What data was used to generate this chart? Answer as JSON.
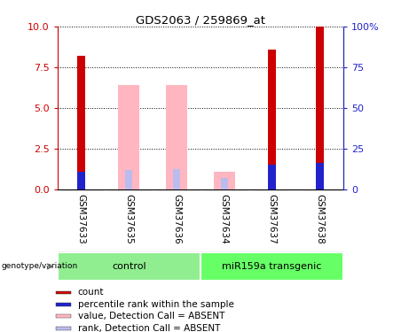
{
  "title": "GDS2063 / 259869_at",
  "samples": [
    "GSM37633",
    "GSM37635",
    "GSM37636",
    "GSM37634",
    "GSM37637",
    "GSM37638"
  ],
  "groups": [
    {
      "name": "control",
      "count": 3,
      "color": "#90EE90"
    },
    {
      "name": "miR159a transgenic",
      "count": 3,
      "color": "#66FF66"
    }
  ],
  "bar_data": [
    {
      "sample": "GSM37633",
      "count": 8.2,
      "rank": 1.1,
      "absent_value": null,
      "absent_rank": null,
      "is_absent": false
    },
    {
      "sample": "GSM37635",
      "count": null,
      "rank": null,
      "absent_value": 6.4,
      "absent_rank": 1.2,
      "is_absent": true
    },
    {
      "sample": "GSM37636",
      "count": null,
      "rank": null,
      "absent_value": 6.4,
      "absent_rank": 1.25,
      "is_absent": true
    },
    {
      "sample": "GSM37634",
      "count": null,
      "rank": null,
      "absent_value": 1.1,
      "absent_rank": 0.7,
      "is_absent": true
    },
    {
      "sample": "GSM37637",
      "count": 8.6,
      "rank": 1.5,
      "absent_value": null,
      "absent_rank": null,
      "is_absent": false
    },
    {
      "sample": "GSM37638",
      "count": 10.0,
      "rank": 1.6,
      "absent_value": null,
      "absent_rank": null,
      "is_absent": false
    }
  ],
  "ylim_left": [
    0,
    10
  ],
  "ylim_right": [
    0,
    100
  ],
  "yticks_left": [
    0,
    2.5,
    5,
    7.5,
    10
  ],
  "yticks_right": [
    0,
    25,
    50,
    75,
    100
  ],
  "count_color": "#CC0000",
  "rank_color": "#2222CC",
  "absent_value_color": "#FFB6C1",
  "absent_rank_color": "#BBBBEE",
  "grid_color": "black",
  "sample_bg_color": "#CCCCCC",
  "sample_sep_color": "white",
  "left_axis_color": "#CC0000",
  "right_axis_color": "#2222CC",
  "legend_items": [
    {
      "label": "count",
      "color": "#CC0000"
    },
    {
      "label": "percentile rank within the sample",
      "color": "#2222CC"
    },
    {
      "label": "value, Detection Call = ABSENT",
      "color": "#FFB6C1"
    },
    {
      "label": "rank, Detection Call = ABSENT",
      "color": "#BBBBEE"
    }
  ],
  "genotype_label": "genotype/variation",
  "narrow_bar_width": 0.18,
  "wide_bar_width": 0.45
}
